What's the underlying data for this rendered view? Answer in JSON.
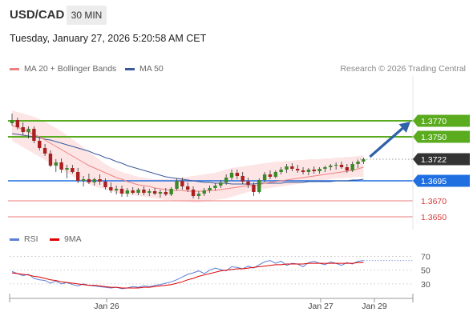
{
  "header": {
    "symbol": "USD/CAD",
    "timeframe": "30 MIN",
    "datetime": "Tuesday, January 27, 2026 5:20:58 AM CET"
  },
  "legend": {
    "ma20": "MA 20 + Bollinger Bands",
    "ma50": "MA 50",
    "credit": "Research © 2026 Trading Central"
  },
  "rsi_legend": {
    "rsi": "RSI",
    "ma9": "9MA"
  },
  "colors": {
    "ma20": "#f08080",
    "band_fill": "#fde0e0",
    "ma50": "#3a5a9c",
    "resistance": "#5aab1e",
    "pivot": "#1f6fe0",
    "support": "#f29494",
    "current": "#333333",
    "rsi": "#5b7fd6",
    "rsi_ma": "#e00000",
    "arrow": "#2f62a8",
    "candle_up": "#3a8a2a",
    "candle_down": "#aa1f1f"
  },
  "chart_data": [
    {
      "type": "candlestick",
      "title": "USD/CAD",
      "x_tick_labels": [
        "Jan 26",
        "Jan 27",
        "Jan 29"
      ],
      "price_levels": [
        {
          "label": "1.3770",
          "value": 1.377,
          "kind": "resistance"
        },
        {
          "label": "1.3750",
          "value": 1.375,
          "kind": "resistance"
        },
        {
          "label": "1.3722",
          "value": 1.3722,
          "kind": "current"
        },
        {
          "label": "1.3695",
          "value": 1.3695,
          "kind": "pivot"
        },
        {
          "label": "1.3670",
          "value": 1.367,
          "kind": "support"
        },
        {
          "label": "1.3650",
          "value": 1.365,
          "kind": "support"
        }
      ],
      "ylim": [
        1.3634,
        1.3826
      ],
      "ohlc": [
        [
          1.3767,
          1.3779,
          1.3764,
          1.3771
        ],
        [
          1.3771,
          1.3774,
          1.3759,
          1.3762
        ],
        [
          1.3762,
          1.3768,
          1.3752,
          1.3756
        ],
        [
          1.3756,
          1.3763,
          1.3748,
          1.376
        ],
        [
          1.376,
          1.3763,
          1.3742,
          1.3745
        ],
        [
          1.3745,
          1.375,
          1.3733,
          1.3736
        ],
        [
          1.3736,
          1.3741,
          1.3726,
          1.3729
        ],
        [
          1.3729,
          1.3733,
          1.3712,
          1.3714
        ],
        [
          1.3714,
          1.3722,
          1.3706,
          1.3718
        ],
        [
          1.3718,
          1.3723,
          1.3705,
          1.3709
        ],
        [
          1.3709,
          1.3715,
          1.3698,
          1.3711
        ],
        [
          1.3711,
          1.3715,
          1.3704,
          1.3706
        ],
        [
          1.3706,
          1.3711,
          1.3692,
          1.3695
        ],
        [
          1.3695,
          1.3701,
          1.3688,
          1.3697
        ],
        [
          1.3697,
          1.3704,
          1.3691,
          1.3693
        ],
        [
          1.3693,
          1.3699,
          1.3689,
          1.3697
        ],
        [
          1.3697,
          1.3703,
          1.369,
          1.3694
        ],
        [
          1.3694,
          1.3698,
          1.3684,
          1.3687
        ],
        [
          1.3687,
          1.3693,
          1.368,
          1.3683
        ],
        [
          1.3683,
          1.3689,
          1.3678,
          1.3685
        ],
        [
          1.3685,
          1.3689,
          1.3675,
          1.3679
        ],
        [
          1.3679,
          1.3686,
          1.3675,
          1.3683
        ],
        [
          1.3683,
          1.3687,
          1.3678,
          1.368
        ],
        [
          1.368,
          1.3686,
          1.3677,
          1.3684
        ],
        [
          1.3684,
          1.3688,
          1.3677,
          1.368
        ],
        [
          1.368,
          1.3685,
          1.3676,
          1.3682
        ],
        [
          1.3682,
          1.3686,
          1.3677,
          1.3679
        ],
        [
          1.3679,
          1.3684,
          1.3674,
          1.3681
        ],
        [
          1.3681,
          1.3686,
          1.3676,
          1.3678
        ],
        [
          1.3678,
          1.3687,
          1.3676,
          1.3685
        ],
        [
          1.3685,
          1.3698,
          1.3683,
          1.3695
        ],
        [
          1.3695,
          1.3699,
          1.3684,
          1.3688
        ],
        [
          1.3688,
          1.3693,
          1.3681,
          1.3684
        ],
        [
          1.3684,
          1.3688,
          1.3673,
          1.3676
        ],
        [
          1.3676,
          1.3682,
          1.3672,
          1.3679
        ],
        [
          1.3679,
          1.3686,
          1.3676,
          1.3683
        ],
        [
          1.3683,
          1.3689,
          1.368,
          1.3686
        ],
        [
          1.3686,
          1.3692,
          1.3683,
          1.3689
        ],
        [
          1.3689,
          1.3696,
          1.3686,
          1.3693
        ],
        [
          1.3693,
          1.3703,
          1.369,
          1.3699
        ],
        [
          1.3699,
          1.3709,
          1.3696,
          1.3705
        ],
        [
          1.3705,
          1.3709,
          1.3697,
          1.3701
        ],
        [
          1.3701,
          1.3706,
          1.3691,
          1.3694
        ],
        [
          1.3694,
          1.3699,
          1.3686,
          1.369
        ],
        [
          1.369,
          1.3693,
          1.3676,
          1.3681
        ],
        [
          1.3681,
          1.3698,
          1.3679,
          1.3696
        ],
        [
          1.3696,
          1.3706,
          1.3693,
          1.3703
        ],
        [
          1.3703,
          1.3708,
          1.3697,
          1.37
        ],
        [
          1.37,
          1.3708,
          1.3698,
          1.3706
        ],
        [
          1.3706,
          1.3712,
          1.3703,
          1.3709
        ],
        [
          1.3709,
          1.3716,
          1.3705,
          1.3713
        ],
        [
          1.3713,
          1.3717,
          1.3707,
          1.371
        ],
        [
          1.371,
          1.3715,
          1.3705,
          1.3708
        ],
        [
          1.3708,
          1.3712,
          1.3703,
          1.3706
        ],
        [
          1.3706,
          1.3711,
          1.3702,
          1.3709
        ],
        [
          1.3709,
          1.3713,
          1.3704,
          1.3707
        ],
        [
          1.3707,
          1.3712,
          1.3704,
          1.371
        ],
        [
          1.371,
          1.3714,
          1.3706,
          1.3712
        ],
        [
          1.3712,
          1.3716,
          1.3708,
          1.3714
        ],
        [
          1.3714,
          1.3718,
          1.3709,
          1.3715
        ],
        [
          1.3715,
          1.3719,
          1.371,
          1.3712
        ],
        [
          1.3712,
          1.3716,
          1.3705,
          1.3708
        ],
        [
          1.3708,
          1.3719,
          1.3706,
          1.3716
        ],
        [
          1.3716,
          1.3721,
          1.3711,
          1.3719
        ],
        [
          1.3719,
          1.3724,
          1.3716,
          1.3722
        ]
      ],
      "ma20": [
        1.3764,
        1.3762,
        1.3759,
        1.3756,
        1.3753,
        1.375,
        1.3746,
        1.3742,
        1.3738,
        1.3734,
        1.373,
        1.3726,
        1.3722,
        1.3718,
        1.3714,
        1.3711,
        1.3708,
        1.3705,
        1.3702,
        1.3699,
        1.3697,
        1.3694,
        1.3692,
        1.369,
        1.3689,
        1.3688,
        1.3686,
        1.3685,
        1.3684,
        1.3683,
        1.3683,
        1.3683,
        1.3682,
        1.3682,
        1.3682,
        1.3682,
        1.3683,
        1.3683,
        1.3684,
        1.3685,
        1.3686,
        1.3687,
        1.3688,
        1.3689,
        1.3689,
        1.369,
        1.3692,
        1.3693,
        1.3694,
        1.3695,
        1.3696,
        1.3697,
        1.3698,
        1.3699,
        1.37,
        1.3701,
        1.3702,
        1.3703,
        1.3704,
        1.3705,
        1.3706,
        1.3707,
        1.3708,
        1.371,
        1.3712
      ],
      "bb_upper": [
        1.3783,
        1.3781,
        1.3779,
        1.3777,
        1.3775,
        1.3772,
        1.3769,
        1.3765,
        1.3761,
        1.3757,
        1.3752,
        1.3747,
        1.3742,
        1.3737,
        1.3731,
        1.3726,
        1.3721,
        1.3716,
        1.3712,
        1.3709,
        1.3706,
        1.3704,
        1.3702,
        1.37,
        1.3699,
        1.3698,
        1.3697,
        1.3697,
        1.3697,
        1.3697,
        1.3698,
        1.3699,
        1.37,
        1.3701,
        1.3702,
        1.3703,
        1.3704,
        1.3705,
        1.3707,
        1.3709,
        1.3711,
        1.3712,
        1.3713,
        1.3714,
        1.3715,
        1.3716,
        1.3717,
        1.3718,
        1.3719,
        1.3719,
        1.372,
        1.372,
        1.3721,
        1.3721,
        1.3722,
        1.3722,
        1.3722,
        1.3723,
        1.3723,
        1.3724,
        1.3724,
        1.3725,
        1.3725,
        1.3726,
        1.3727
      ],
      "bb_lower": [
        1.3745,
        1.3741,
        1.3737,
        1.3733,
        1.3729,
        1.3725,
        1.3721,
        1.3717,
        1.3713,
        1.3709,
        1.3705,
        1.3701,
        1.3697,
        1.3694,
        1.3691,
        1.3688,
        1.3686,
        1.3684,
        1.3682,
        1.368,
        1.3679,
        1.3678,
        1.3677,
        1.3676,
        1.3675,
        1.3674,
        1.3673,
        1.3672,
        1.3671,
        1.3671,
        1.367,
        1.3669,
        1.3669,
        1.3668,
        1.3668,
        1.3669,
        1.367,
        1.3671,
        1.3672,
        1.3673,
        1.3675,
        1.3677,
        1.3679,
        1.3681,
        1.3683,
        1.3684,
        1.3685,
        1.3686,
        1.3687,
        1.3688,
        1.3689,
        1.369,
        1.3691,
        1.3692,
        1.3693,
        1.3694,
        1.3695,
        1.3696,
        1.3697,
        1.3698,
        1.3698,
        1.3699,
        1.3699,
        1.37,
        1.37
      ],
      "ma50": [
        1.3754,
        1.3753,
        1.3752,
        1.3751,
        1.375,
        1.3749,
        1.3747,
        1.3746,
        1.3744,
        1.3742,
        1.374,
        1.3738,
        1.3736,
        1.3734,
        1.3732,
        1.3729,
        1.3727,
        1.3724,
        1.3722,
        1.3719,
        1.3717,
        1.3714,
        1.3712,
        1.371,
        1.3708,
        1.3706,
        1.3704,
        1.3702,
        1.37,
        1.3699,
        1.3698,
        1.3697,
        1.3696,
        1.3695,
        1.3694,
        1.3693,
        1.3693,
        1.3692,
        1.3692,
        1.3692,
        1.3691,
        1.3691,
        1.3691,
        1.3691,
        1.3691,
        1.3692,
        1.3692,
        1.3692,
        1.3692,
        1.3692,
        1.3693,
        1.3693,
        1.3693,
        1.3693,
        1.3694,
        1.3694,
        1.3694,
        1.3694,
        1.3694,
        1.3695,
        1.3695,
        1.3695,
        1.3696,
        1.3696,
        1.3697
      ],
      "projection": {
        "from": 1.3722,
        "to": 1.377
      }
    },
    {
      "type": "line",
      "title": "RSI",
      "levels": [
        70,
        50,
        30
      ],
      "ylim": [
        10,
        80
      ],
      "series": [
        {
          "name": "RSI",
          "values": [
            48,
            45,
            42,
            44,
            38,
            36,
            35,
            31,
            34,
            30,
            32,
            29,
            27,
            30,
            28,
            27,
            26,
            25,
            24,
            25,
            23,
            24,
            26,
            25,
            27,
            26,
            28,
            29,
            31,
            33,
            36,
            40,
            44,
            46,
            49,
            45,
            50,
            53,
            51,
            49,
            55,
            54,
            52,
            56,
            53,
            58,
            62,
            64,
            60,
            63,
            57,
            60,
            59,
            55,
            61,
            63,
            60,
            58,
            62,
            60,
            57,
            61,
            59,
            63,
            64
          ]
        },
        {
          "name": "9MA",
          "values": [
            46,
            45,
            44,
            43,
            41,
            40,
            38,
            36,
            35,
            33,
            32,
            31,
            30,
            29,
            28,
            28,
            27,
            26,
            25,
            25,
            24,
            24,
            24,
            24,
            25,
            25,
            26,
            27,
            28,
            29,
            31,
            33,
            36,
            38,
            41,
            43,
            45,
            47,
            49,
            50,
            51,
            52,
            52,
            53,
            54,
            55,
            56,
            57,
            58,
            58,
            59,
            59,
            59,
            59,
            60,
            60,
            60,
            60,
            60,
            60,
            60,
            60,
            60,
            61,
            61
          ]
        }
      ]
    }
  ]
}
